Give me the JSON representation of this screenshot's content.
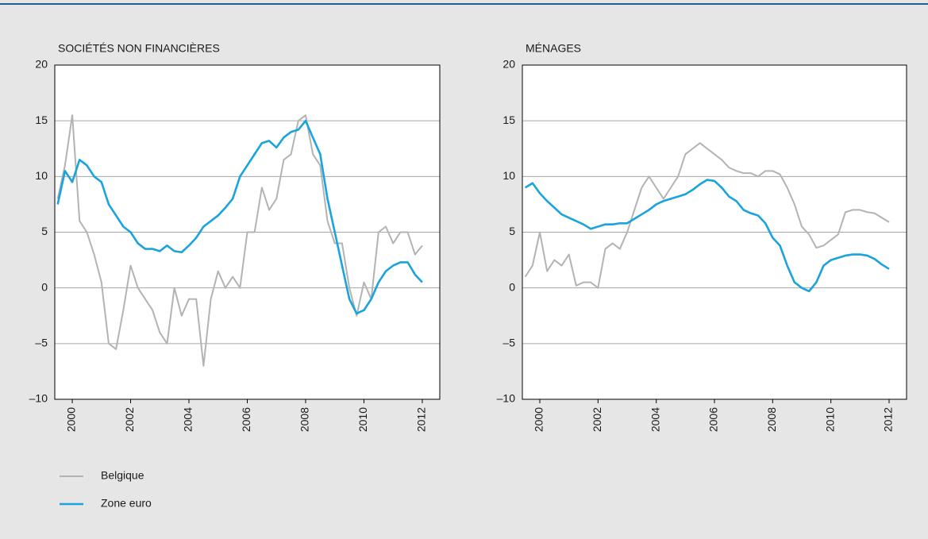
{
  "chart_data": [
    {
      "type": "line",
      "title": "SOCIÉTÉS NON FINANCIÈRES",
      "x": [
        1999.5,
        1999.75,
        2000,
        2000.25,
        2000.5,
        2000.75,
        2001,
        2001.25,
        2001.5,
        2001.75,
        2002,
        2002.25,
        2002.5,
        2002.75,
        2003,
        2003.25,
        2003.5,
        2003.75,
        2004,
        2004.25,
        2004.5,
        2004.75,
        2005,
        2005.25,
        2005.5,
        2005.75,
        2006,
        2006.25,
        2006.5,
        2006.75,
        2007,
        2007.25,
        2007.5,
        2007.75,
        2008,
        2008.25,
        2008.5,
        2008.75,
        2009,
        2009.25,
        2009.5,
        2009.75,
        2010,
        2010.25,
        2010.5,
        2010.75,
        2011,
        2011.25,
        2011.5,
        2011.75,
        2012
      ],
      "series": [
        {
          "name": "Belgique",
          "color": "#b3b3b3",
          "values": [
            8,
            11,
            15.5,
            6,
            5,
            3,
            0.5,
            -5,
            -5.5,
            -2,
            2,
            0,
            -1,
            -2,
            -4,
            -5,
            0,
            -2.5,
            -1,
            -1,
            -7,
            -1,
            1.5,
            0,
            1,
            0,
            5,
            5,
            9,
            7,
            8,
            11.5,
            12,
            15,
            15.5,
            12,
            11,
            6,
            4,
            4,
            0,
            -2.5,
            0.5,
            -1,
            5,
            5.5,
            4,
            5,
            5,
            3,
            3.8
          ]
        },
        {
          "name": "Zone euro",
          "color": "#1aa3dd",
          "values": [
            7.5,
            10.5,
            9.5,
            11.5,
            11,
            10,
            9.5,
            7.5,
            6.5,
            5.5,
            5,
            4,
            3.5,
            3.5,
            3.3,
            3.8,
            3.3,
            3.2,
            3.8,
            4.5,
            5.5,
            6,
            6.5,
            7.2,
            8,
            10,
            11,
            12,
            13,
            13.2,
            12.6,
            13.5,
            14,
            14.2,
            15,
            13.5,
            12,
            8,
            5,
            2,
            -1,
            -2.3,
            -2,
            -1,
            0.5,
            1.5,
            2,
            2.3,
            2.3,
            1.2,
            0.5
          ]
        }
      ],
      "xlim": [
        1999.4,
        2012.6
      ],
      "xticks": [
        2000,
        2002,
        2004,
        2006,
        2008,
        2010,
        2012
      ],
      "ylim": [
        -10,
        20
      ],
      "yticks": [
        {
          "value": -10,
          "label": "–10"
        },
        {
          "value": -5,
          "label": "–5"
        },
        0,
        5,
        10,
        15,
        20
      ],
      "grid": true
    },
    {
      "type": "line",
      "title": "MÉNAGES",
      "x": [
        1999.5,
        1999.75,
        2000,
        2000.25,
        2000.5,
        2000.75,
        2001,
        2001.25,
        2001.5,
        2001.75,
        2002,
        2002.25,
        2002.5,
        2002.75,
        2003,
        2003.25,
        2003.5,
        2003.75,
        2004,
        2004.25,
        2004.5,
        2004.75,
        2005,
        2005.25,
        2005.5,
        2005.75,
        2006,
        2006.25,
        2006.5,
        2006.75,
        2007,
        2007.25,
        2007.5,
        2007.75,
        2008,
        2008.25,
        2008.5,
        2008.75,
        2009,
        2009.25,
        2009.5,
        2009.75,
        2010,
        2010.25,
        2010.5,
        2010.75,
        2011,
        2011.25,
        2011.5,
        2011.75,
        2012
      ],
      "series": [
        {
          "color": "#b3b3b3",
          "values": [
            1,
            2,
            5,
            1.5,
            2.5,
            2,
            3,
            0.2,
            0.5,
            0.5,
            0,
            3.5,
            4,
            3.5,
            5,
            7,
            9,
            10,
            9,
            8,
            9,
            10,
            12,
            12.5,
            13,
            12.5,
            12,
            11.5,
            10.8,
            10.5,
            10.3,
            10.3,
            10,
            10.5,
            10.5,
            10.2,
            9,
            7.5,
            5.5,
            4.8,
            3.6,
            3.8,
            4.3,
            4.8,
            6.8,
            7,
            7,
            6.8,
            6.7,
            6.3,
            5.9
          ]
        },
        {
          "color": "#1aa3dd",
          "values": [
            9,
            9.4,
            8.5,
            7.8,
            7.2,
            6.6,
            6.3,
            6,
            5.7,
            5.3,
            5.5,
            5.7,
            5.7,
            5.8,
            5.8,
            6.2,
            6.6,
            7,
            7.5,
            7.8,
            8,
            8.2,
            8.4,
            8.8,
            9.3,
            9.7,
            9.6,
            9,
            8.2,
            7.8,
            7,
            6.7,
            6.5,
            5.8,
            4.5,
            3.8,
            2,
            0.5,
            0,
            -0.3,
            0.5,
            2,
            2.5,
            2.7,
            2.9,
            3,
            3,
            2.9,
            2.6,
            2.1,
            1.7
          ]
        }
      ],
      "xlim": [
        1999.4,
        2012.6
      ],
      "xticks": [
        2000,
        2002,
        2004,
        2006,
        2008,
        2010,
        2012
      ],
      "ylim": [
        -10,
        20
      ],
      "yticks": [
        {
          "value": -10,
          "label": "–10"
        },
        {
          "value": -5,
          "label": "–5"
        },
        0,
        5,
        10,
        15,
        20
      ],
      "grid": true
    }
  ]
}
